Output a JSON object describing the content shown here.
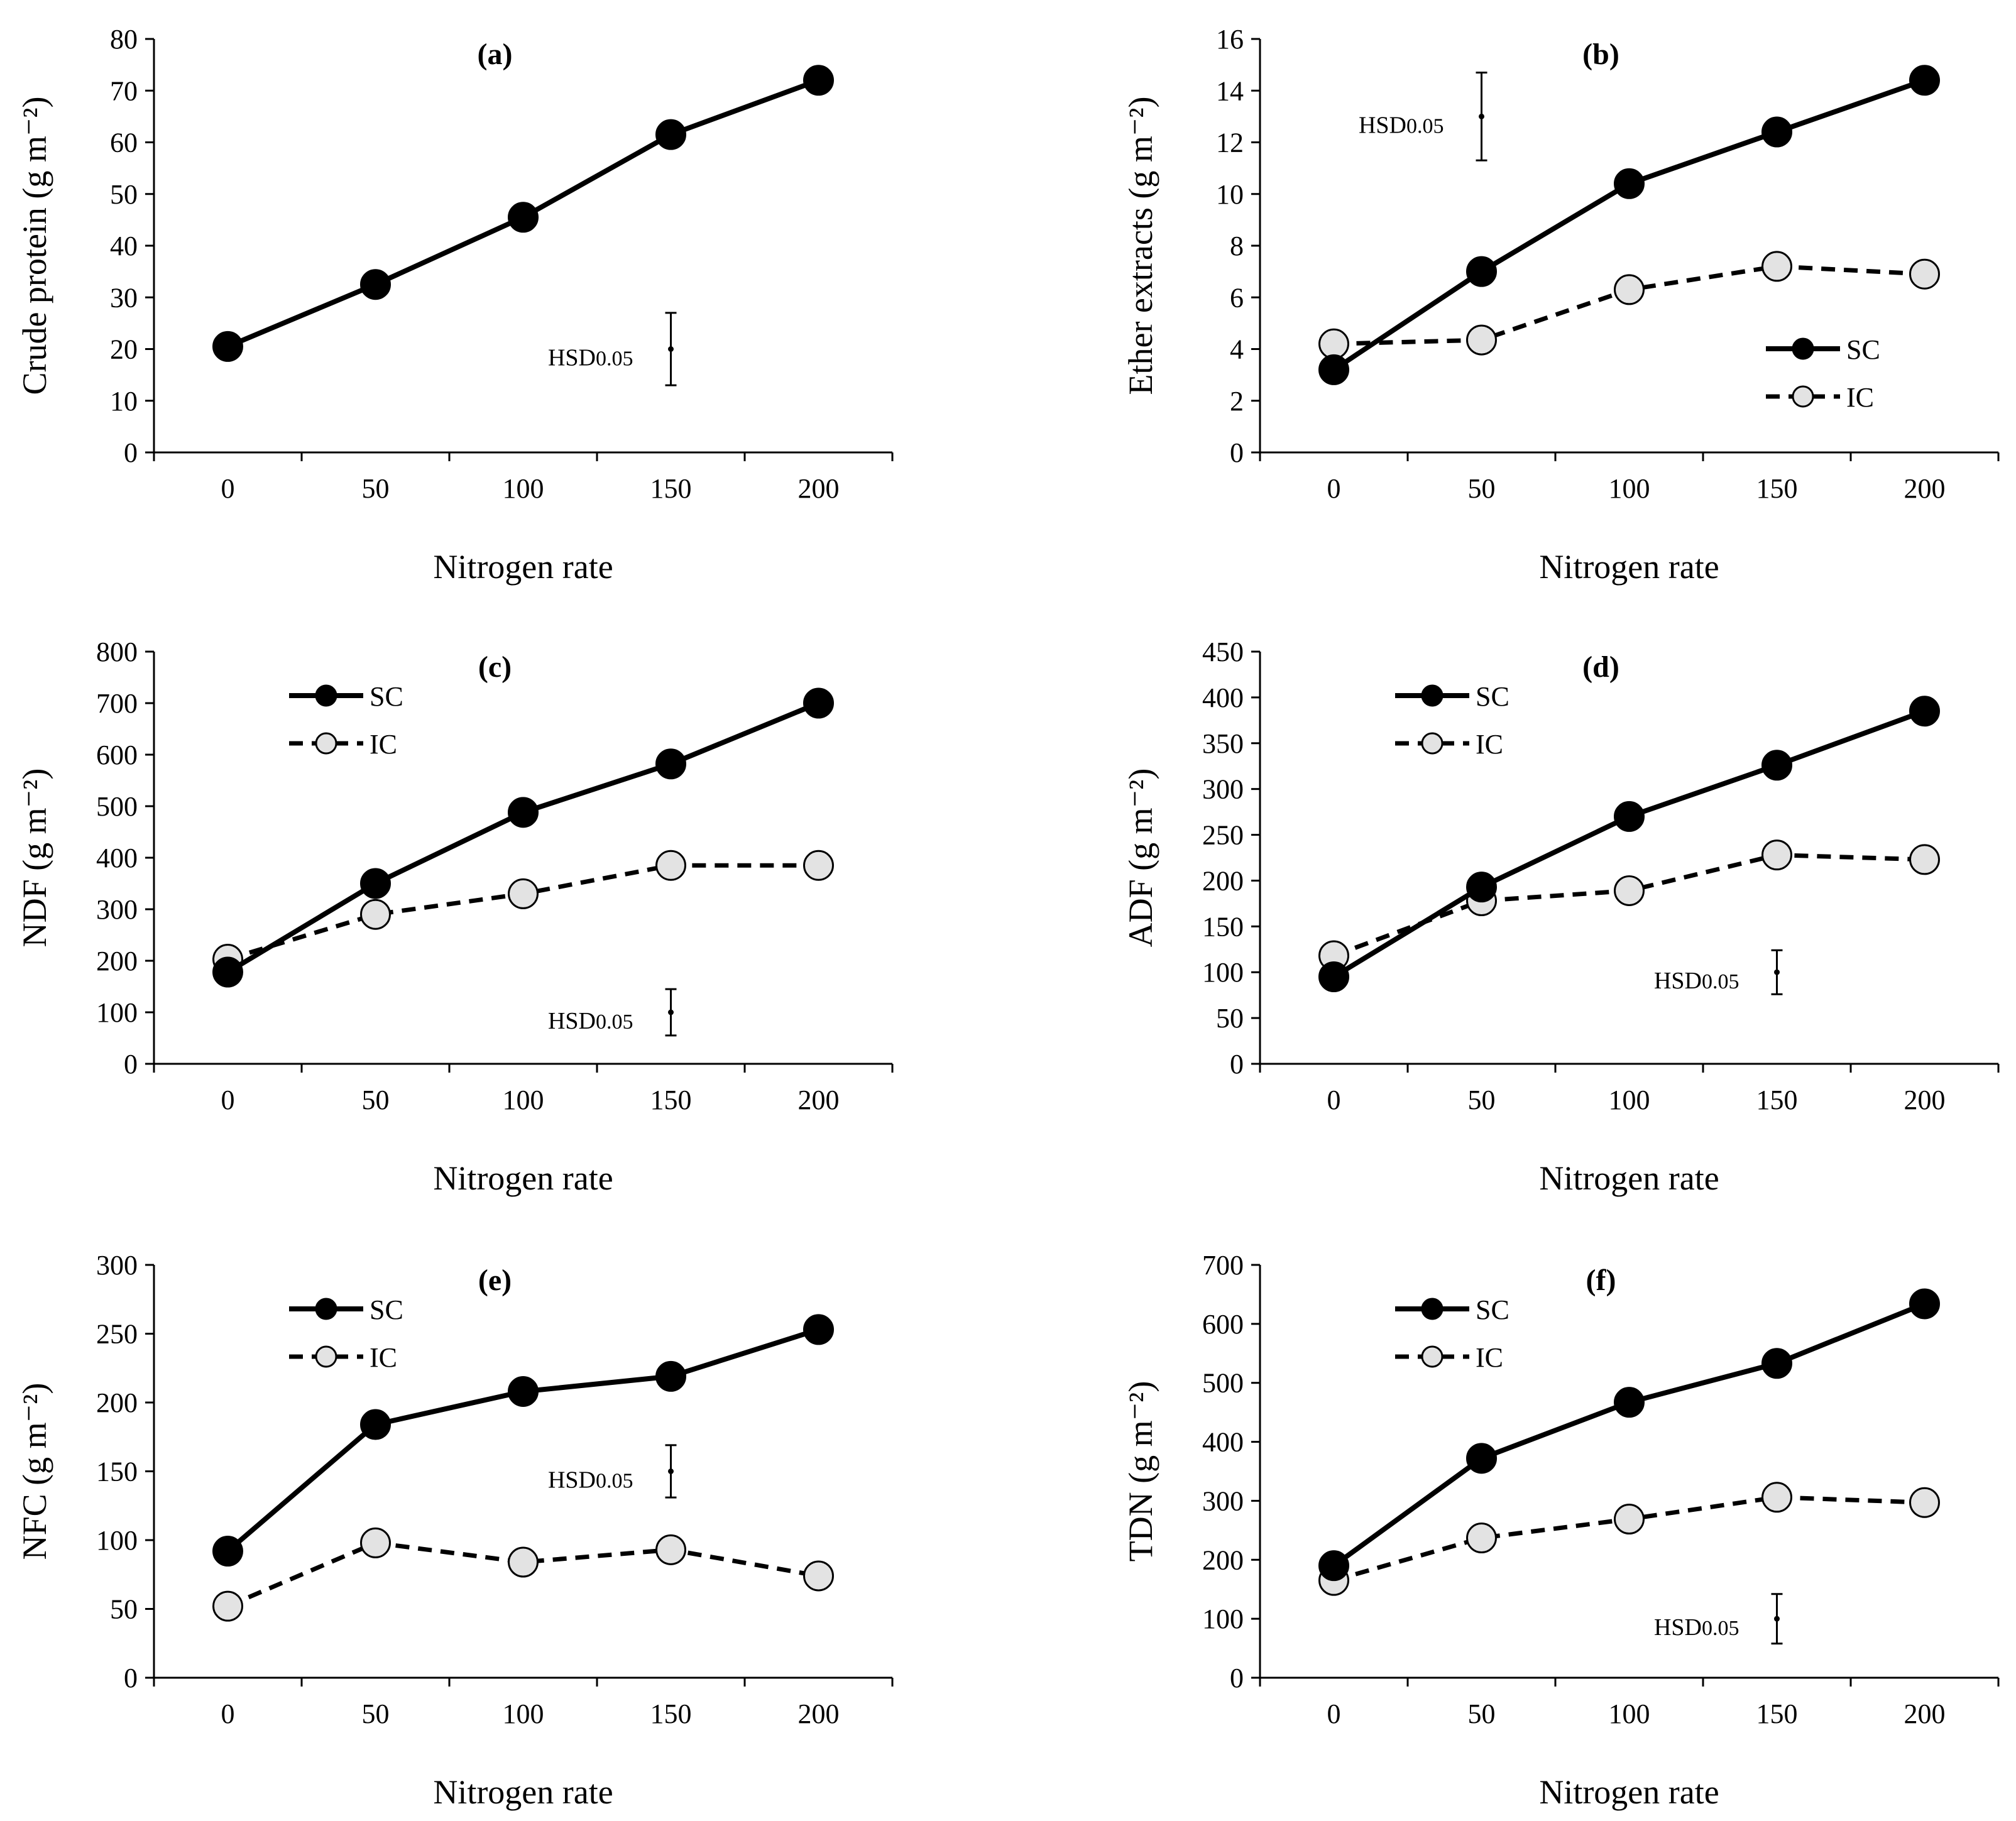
{
  "chart_data": [
    {
      "type": "line",
      "panel_label": "(a)",
      "xlabel": "Nitrogen rate",
      "ylabel": "Crude protein",
      "yunit": "(g m⁻²)",
      "categories": [
        "0",
        "50",
        "100",
        "150",
        "200"
      ],
      "ylim": [
        0,
        80
      ],
      "yticks": [
        "0",
        "10",
        "20",
        "30",
        "40",
        "50",
        "60",
        "70",
        "80"
      ],
      "series": [
        {
          "name": "SC",
          "style": "solid-filled",
          "values": [
            20.5,
            32.5,
            45.5,
            61.5,
            72
          ]
        }
      ],
      "legend": false,
      "hsd": {
        "label": "HSD",
        "subscript": "0.05",
        "x": 150,
        "center": 20,
        "low": 13,
        "high": 27
      }
    },
    {
      "type": "line",
      "panel_label": "(b)",
      "xlabel": "Nitrogen rate",
      "ylabel": "Ether extracts",
      "yunit": "(g m⁻²)",
      "categories": [
        "0",
        "50",
        "100",
        "150",
        "200"
      ],
      "ylim": [
        0,
        16
      ],
      "yticks": [
        "0",
        "2",
        "4",
        "6",
        "8",
        "10",
        "12",
        "14",
        "16"
      ],
      "series": [
        {
          "name": "SC",
          "style": "solid-filled",
          "values": [
            3.2,
            7.0,
            10.4,
            12.4,
            14.4
          ]
        },
        {
          "name": "IC",
          "style": "dashed-open",
          "values": [
            4.2,
            4.35,
            6.3,
            7.2,
            6.9
          ]
        }
      ],
      "legend": "bottom-right",
      "hsd": {
        "label": "HSD",
        "subscript": "0.05",
        "x": 50,
        "center": 13,
        "low": 11.3,
        "high": 14.7
      }
    },
    {
      "type": "line",
      "panel_label": "(c)",
      "xlabel": "Nitrogen rate",
      "ylabel": "NDF",
      "yunit": "(g m⁻²)",
      "categories": [
        "0",
        "50",
        "100",
        "150",
        "200"
      ],
      "ylim": [
        0,
        800
      ],
      "yticks": [
        "0",
        "100",
        "200",
        "300",
        "400",
        "500",
        "600",
        "700",
        "800"
      ],
      "series": [
        {
          "name": "SC",
          "style": "solid-filled",
          "values": [
            178,
            350,
            488,
            582,
            700
          ]
        },
        {
          "name": "IC",
          "style": "dashed-open",
          "values": [
            203,
            290,
            330,
            385,
            385
          ]
        }
      ],
      "legend": "top-left",
      "hsd": {
        "label": "HSD",
        "subscript": "0.05",
        "x": 150,
        "center": 100,
        "low": 55,
        "high": 145
      }
    },
    {
      "type": "line",
      "panel_label": "(d)",
      "xlabel": "Nitrogen rate",
      "ylabel": "ADF",
      "yunit": "(g m⁻²)",
      "categories": [
        "0",
        "50",
        "100",
        "150",
        "200"
      ],
      "ylim": [
        0,
        450
      ],
      "yticks": [
        "0",
        "50",
        "100",
        "150",
        "200",
        "250",
        "300",
        "350",
        "400",
        "450"
      ],
      "series": [
        {
          "name": "SC",
          "style": "solid-filled",
          "values": [
            95,
            193,
            270,
            326,
            385
          ]
        },
        {
          "name": "IC",
          "style": "dashed-open",
          "values": [
            118,
            178,
            189,
            228,
            223
          ]
        }
      ],
      "legend": "top-left",
      "hsd": {
        "label": "HSD",
        "subscript": "0.05",
        "x": 150,
        "center": 100,
        "low": 76,
        "high": 124
      }
    },
    {
      "type": "line",
      "panel_label": "(e)",
      "xlabel": "Nitrogen rate",
      "ylabel": "NFC",
      "yunit": "(g m⁻²)",
      "categories": [
        "0",
        "50",
        "100",
        "150",
        "200"
      ],
      "ylim": [
        0,
        300
      ],
      "yticks": [
        "0",
        "50",
        "100",
        "150",
        "200",
        "250",
        "300"
      ],
      "series": [
        {
          "name": "SC",
          "style": "solid-filled",
          "values": [
            92,
            184,
            208,
            219,
            253
          ]
        },
        {
          "name": "IC",
          "style": "dashed-open",
          "values": [
            52,
            98,
            84,
            93,
            74
          ]
        }
      ],
      "legend": "top-left",
      "hsd": {
        "label": "HSD",
        "subscript": "0.05",
        "x": 150,
        "center": 150,
        "low": 131,
        "high": 169
      }
    },
    {
      "type": "line",
      "panel_label": "(f)",
      "xlabel": "Nitrogen rate",
      "ylabel": "TDN",
      "yunit": "(g m⁻²)",
      "categories": [
        "0",
        "50",
        "100",
        "150",
        "200"
      ],
      "ylim": [
        0,
        700
      ],
      "yticks": [
        "0",
        "100",
        "200",
        "300",
        "400",
        "500",
        "600",
        "700"
      ],
      "series": [
        {
          "name": "SC",
          "style": "solid-filled",
          "values": [
            190,
            372,
            467,
            533,
            634
          ]
        },
        {
          "name": "IC",
          "style": "dashed-open",
          "values": [
            165,
            237,
            269,
            306,
            297
          ]
        }
      ],
      "legend": "top-left",
      "hsd": {
        "label": "HSD",
        "subscript": "0.05",
        "x": 150,
        "center": 100,
        "low": 58,
        "high": 142
      }
    }
  ]
}
